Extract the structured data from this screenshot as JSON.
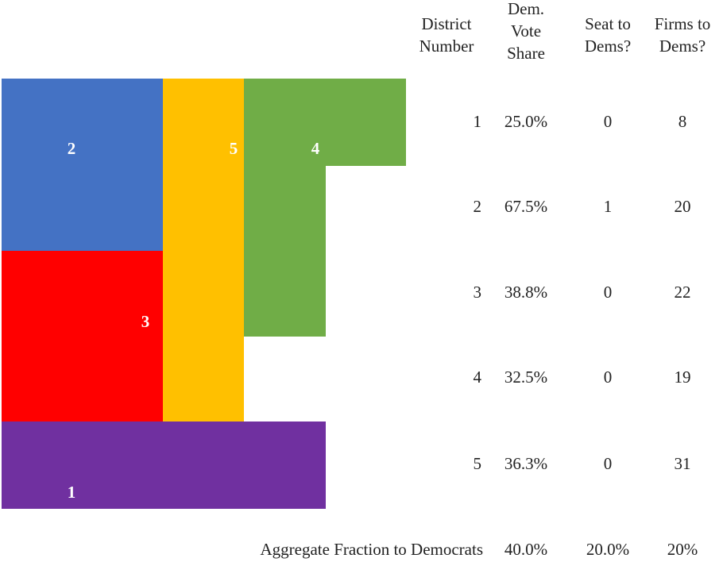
{
  "map": {
    "colors": {
      "district_1": "#7030A0",
      "district_2": "#4472C4",
      "district_3": "#FF0000",
      "district_4": "#70AD47",
      "district_5": "#FFC000"
    },
    "labels": {
      "district_1": "1",
      "district_2": "2",
      "district_3": "3",
      "district_4": "4",
      "district_5": "5"
    }
  },
  "table": {
    "headers": {
      "district_number": [
        "District",
        "Number"
      ],
      "dem_vote_share": [
        "Dem.",
        "Vote",
        "Share"
      ],
      "seat_to_dems": [
        "Seat to",
        "Dems?"
      ],
      "firms_to_dems": [
        "Firms to",
        "Dems?"
      ]
    },
    "rows": [
      {
        "district": "1",
        "share": "25.0%",
        "seat": "0",
        "firms": "8"
      },
      {
        "district": "2",
        "share": "67.5%",
        "seat": "1",
        "firms": "20"
      },
      {
        "district": "3",
        "share": "38.8%",
        "seat": "0",
        "firms": "22"
      },
      {
        "district": "4",
        "share": "32.5%",
        "seat": "0",
        "firms": "19"
      },
      {
        "district": "5",
        "share": "36.3%",
        "seat": "0",
        "firms": "31"
      }
    ],
    "aggregate": {
      "label": "Aggregate Fraction to Democrats",
      "share": "40.0%",
      "seat": "20.0%",
      "firms": "20%"
    }
  }
}
